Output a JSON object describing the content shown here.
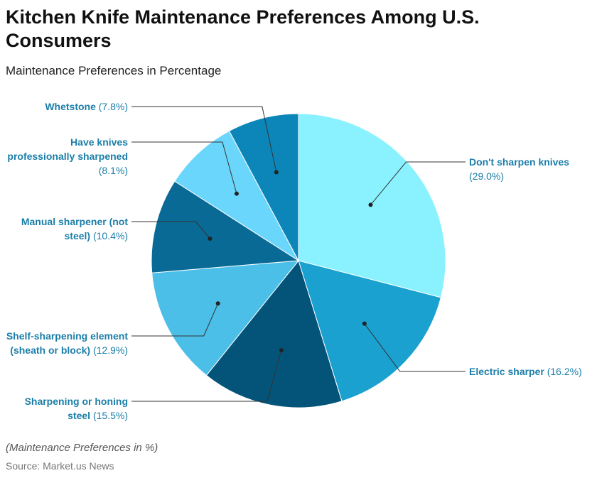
{
  "chart_data": {
    "type": "pie",
    "title": "Kitchen Knife Maintenance Preferences Among U.S. Consumers",
    "subtitle": "Maintenance Preferences in Percentage",
    "categories": [
      "Don't sharpen knives",
      "Electric sharper",
      "Sharpening or honing steel",
      "Shelf-sharpening element (sheath or block)",
      "Manual sharpener (not steel)",
      "Have knives professionally sharpened",
      "Whetstone"
    ],
    "values": [
      29.0,
      16.2,
      15.5,
      12.9,
      10.4,
      8.1,
      7.8
    ],
    "value_labels": [
      "(29.0%)",
      "(16.2%)",
      "(15.5%)",
      "(12.9%)",
      "(10.4%)",
      "(8.1%)",
      "(7.8%)"
    ],
    "colors": [
      "#8af2ff",
      "#1ba1cf",
      "#04547a",
      "#4bbfe8",
      "#0a6a96",
      "#6bd6fc",
      "#0c86b8"
    ],
    "note": "(Maintenance Preferences in %)",
    "source": "Source: Market.us News"
  }
}
